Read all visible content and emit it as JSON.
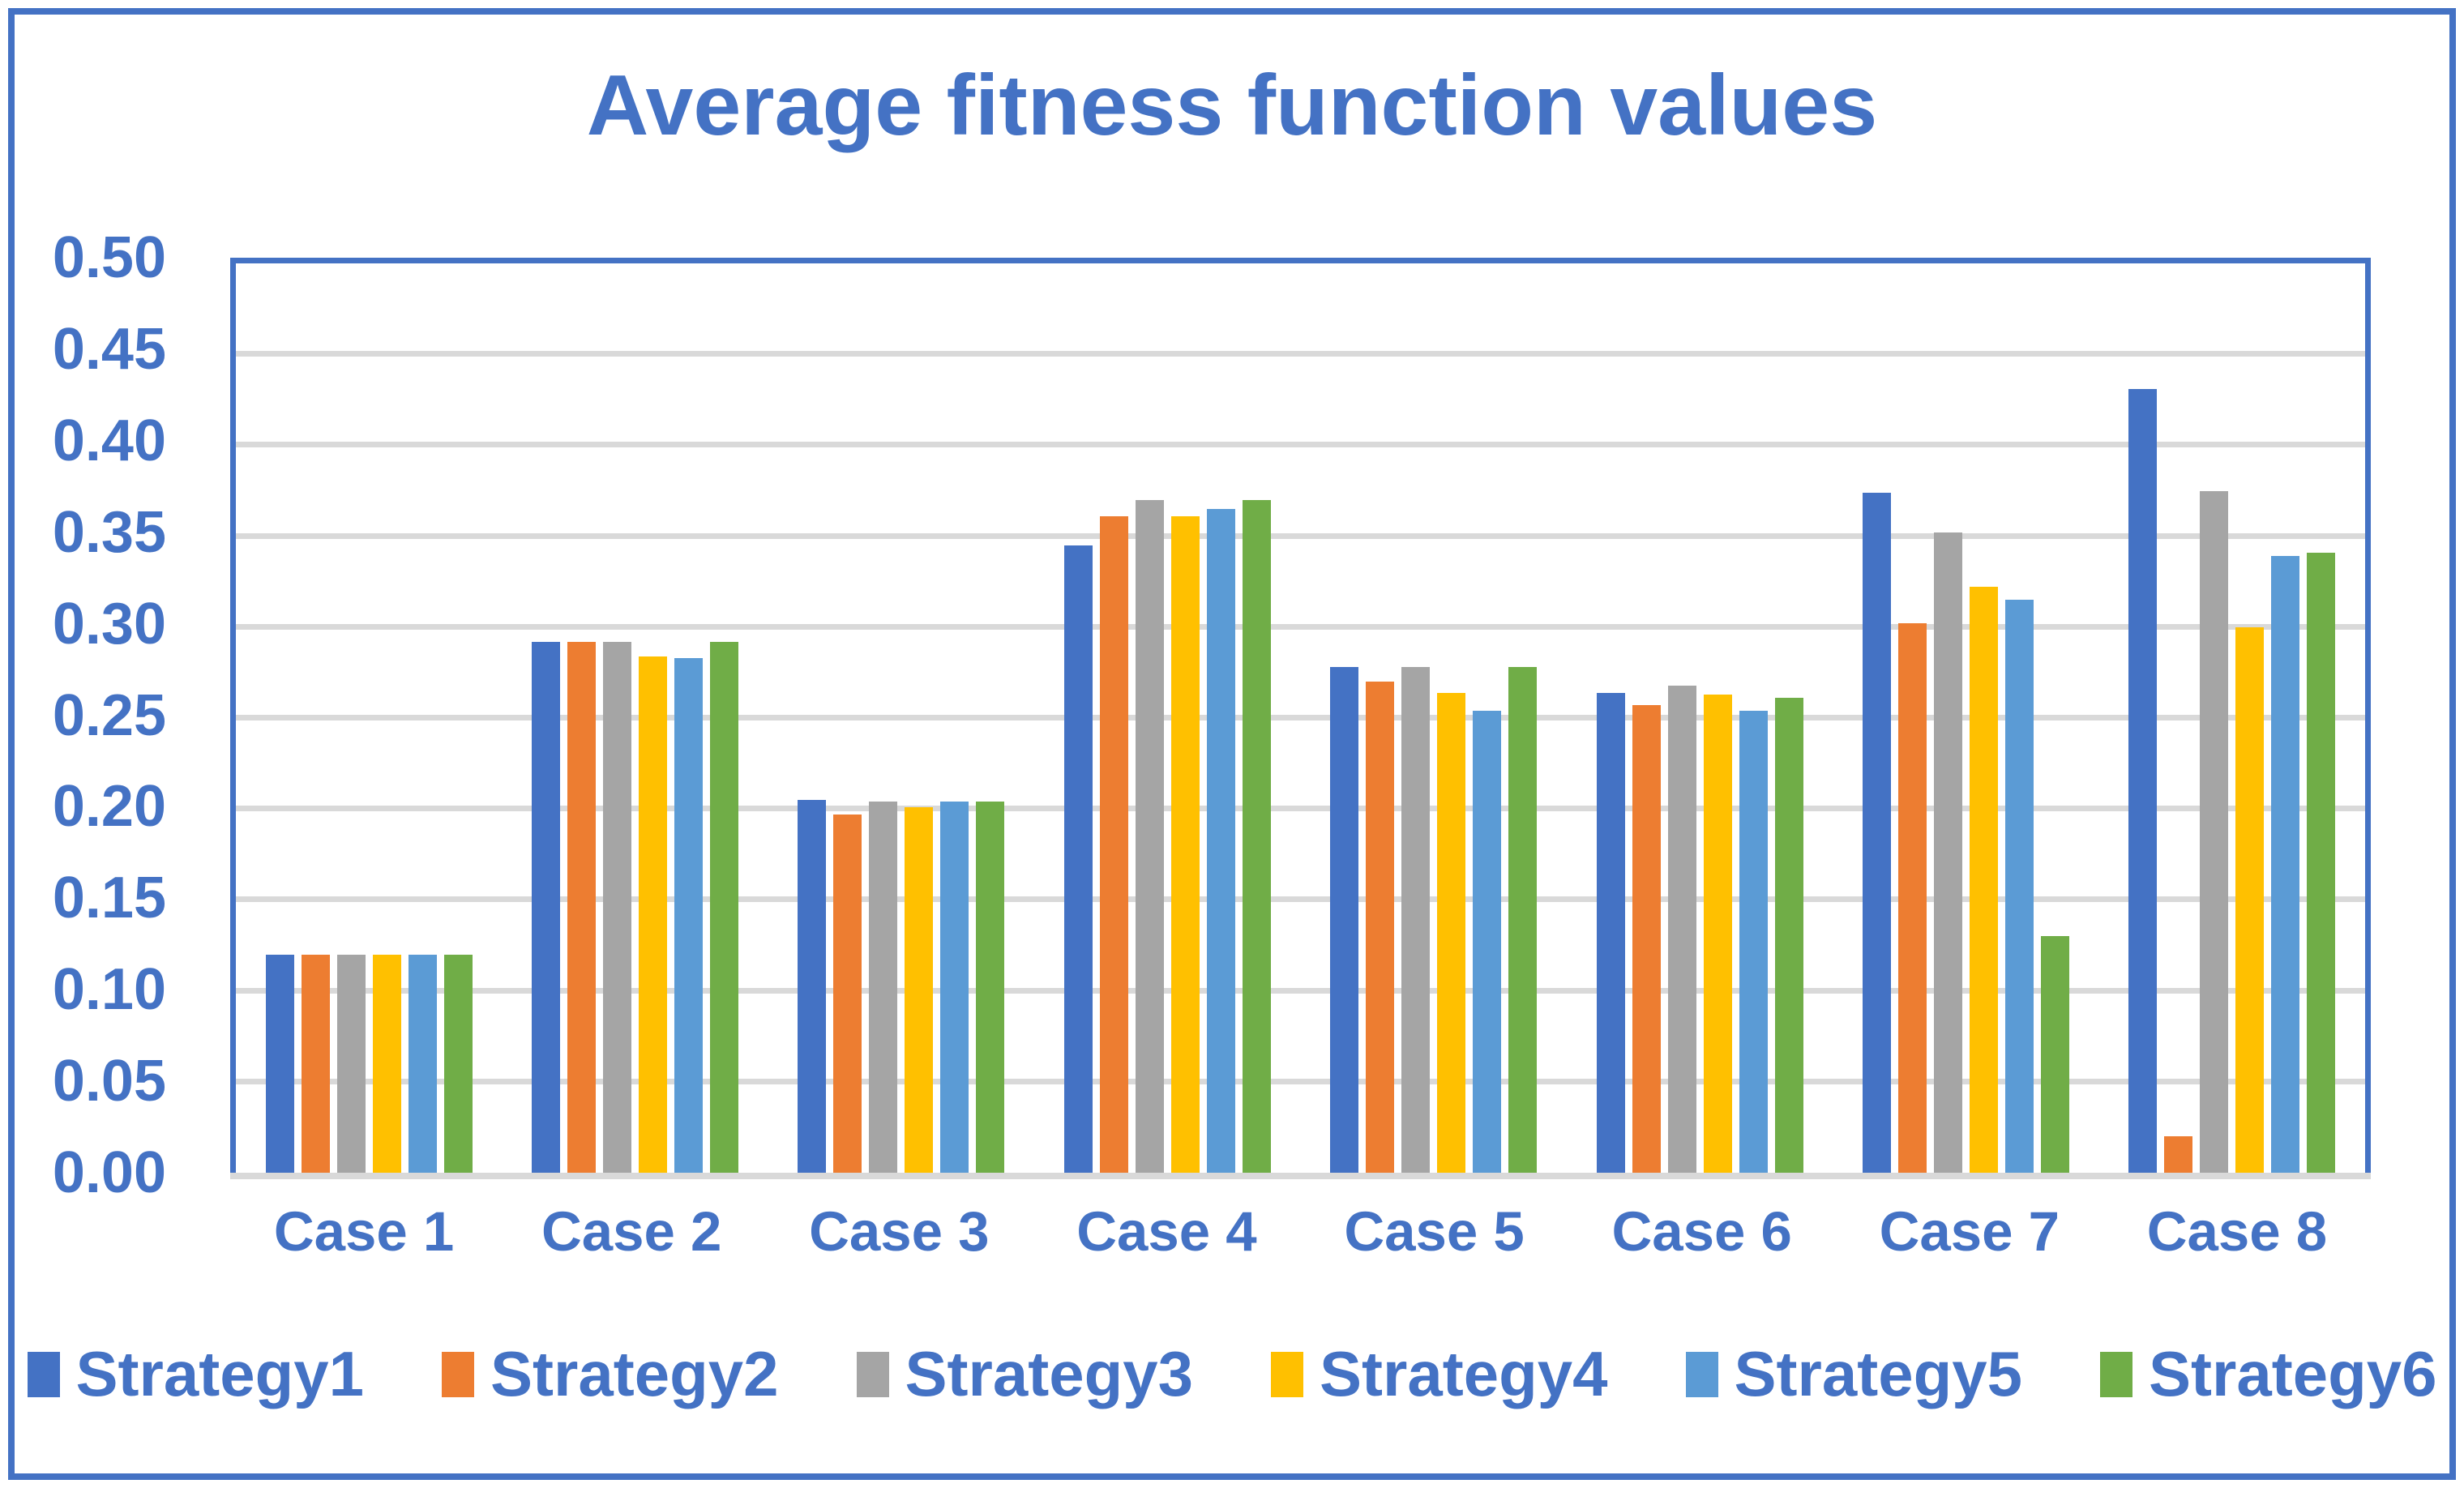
{
  "title": "Average fitness function values",
  "colors": {
    "accent_blue": "#4472C4",
    "gridline_gray": "#D9D9D9",
    "axis_line_gray": "#D9D9D9",
    "frame_border_blue": "#4472C4"
  },
  "chart_data": {
    "type": "bar",
    "title": "Average fitness function values",
    "categories": [
      "Case 1",
      "Case 2",
      "Case 3",
      "Case 4",
      "Case 5",
      "Case 6",
      "Case 7",
      "Case 8"
    ],
    "series": [
      {
        "name": "Strategy1",
        "color": "#4472C4",
        "values": [
          0.12,
          0.292,
          0.205,
          0.345,
          0.278,
          0.264,
          0.374,
          0.431
        ]
      },
      {
        "name": "Strategy2",
        "color": "#ED7D31",
        "values": [
          0.12,
          0.292,
          0.197,
          0.361,
          0.27,
          0.257,
          0.302,
          0.02
        ]
      },
      {
        "name": "Strategy3",
        "color": "#A5A5A5",
        "values": [
          0.12,
          0.292,
          0.204,
          0.37,
          0.278,
          0.268,
          0.352,
          0.375
        ]
      },
      {
        "name": "Strategy4",
        "color": "#FFC000",
        "values": [
          0.12,
          0.284,
          0.201,
          0.361,
          0.264,
          0.263,
          0.322,
          0.3
        ]
      },
      {
        "name": "Strategy5",
        "color": "#5B9BD5",
        "values": [
          0.12,
          0.283,
          0.204,
          0.365,
          0.254,
          0.254,
          0.315,
          0.339
        ]
      },
      {
        "name": "Strategy6",
        "color": "#70AD47",
        "values": [
          0.12,
          0.292,
          0.204,
          0.37,
          0.278,
          0.261,
          0.13,
          0.341
        ]
      }
    ],
    "ylim": [
      0,
      0.5
    ],
    "ytick_step": 0.05,
    "ytick_labels": [
      "0.00",
      "0.05",
      "0.10",
      "0.15",
      "0.20",
      "0.25",
      "0.30",
      "0.35",
      "0.40",
      "0.45",
      "0.50"
    ],
    "grid": true,
    "legend_position": "bottom"
  }
}
